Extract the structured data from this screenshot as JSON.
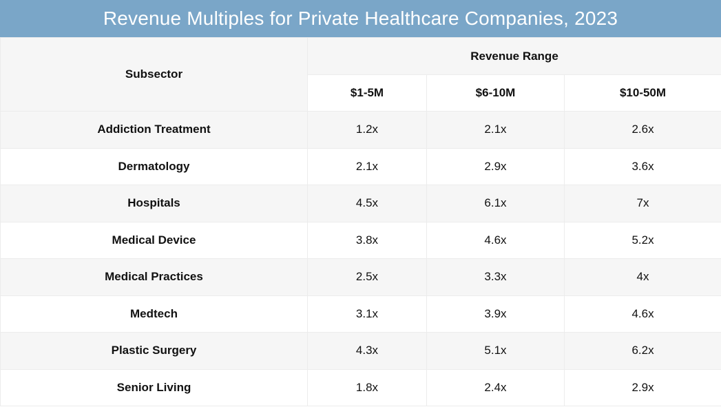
{
  "chart_data": {
    "type": "table",
    "title": "Revenue Multiples for Private Healthcare Companies, 2023",
    "row_header": "Subsector",
    "column_group": "Revenue Range",
    "columns": [
      "$1-5M",
      "$6-10M",
      "$10-50M"
    ],
    "rows": [
      {
        "name": "Addiction Treatment",
        "values": [
          "1.2x",
          "2.1x",
          "2.6x"
        ]
      },
      {
        "name": "Dermatology",
        "values": [
          "2.1x",
          "2.9x",
          "3.6x"
        ]
      },
      {
        "name": "Hospitals",
        "values": [
          "4.5x",
          "6.1x",
          "7x"
        ]
      },
      {
        "name": "Medical Device",
        "values": [
          "3.8x",
          "4.6x",
          "5.2x"
        ]
      },
      {
        "name": "Medical Practices",
        "values": [
          "2.5x",
          "3.3x",
          "4x"
        ]
      },
      {
        "name": "Medtech",
        "values": [
          "3.1x",
          "3.9x",
          "4.6x"
        ]
      },
      {
        "name": "Plastic Surgery",
        "values": [
          "4.3x",
          "5.1x",
          "6.2x"
        ]
      },
      {
        "name": "Senior Living",
        "values": [
          "1.8x",
          "2.4x",
          "2.9x"
        ]
      }
    ],
    "colors": {
      "title_background": "#7aa6c8",
      "title_text": "#ffffff",
      "band": "#f6f6f6"
    }
  }
}
